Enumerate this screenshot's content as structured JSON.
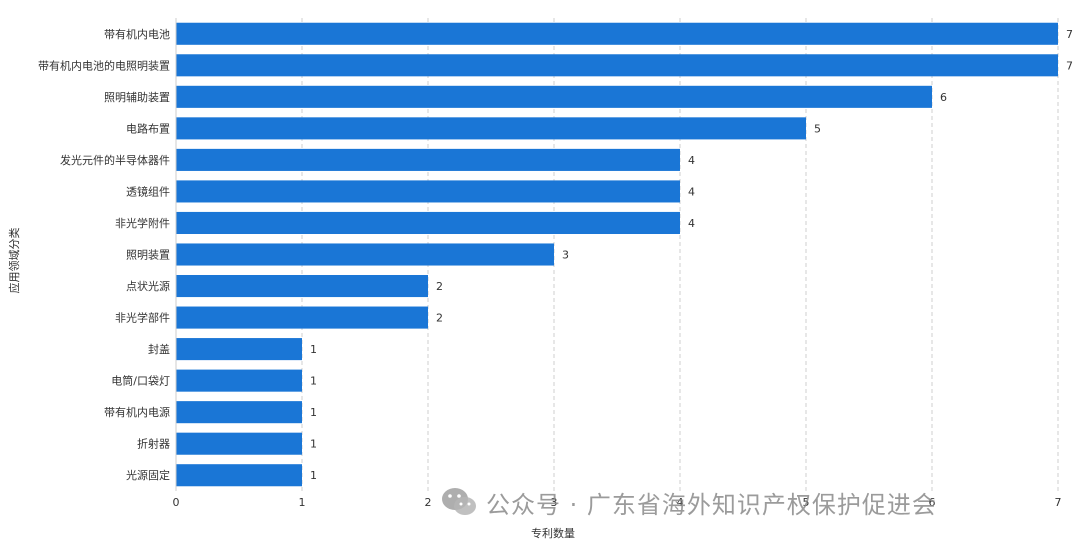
{
  "chart_data": {
    "type": "bar",
    "orientation": "horizontal",
    "categories": [
      "带有机内电池",
      "带有机内电池的电照明装置",
      "照明辅助装置",
      "电路布置",
      "发光元件的半导体器件",
      "透镜组件",
      "非光学附件",
      "照明装置",
      "点状光源",
      "非光学部件",
      "封盖",
      "电筒/口袋灯",
      "带有机内电源",
      "折射器",
      "光源固定"
    ],
    "values": [
      7,
      7,
      6,
      5,
      4,
      4,
      4,
      3,
      2,
      2,
      1,
      1,
      1,
      1,
      1
    ],
    "xlabel": "专利数量",
    "ylabel": "应用领域分类",
    "xlim": [
      0,
      7
    ],
    "xticks": [
      "0",
      "1",
      "2",
      "3",
      "4",
      "5",
      "6",
      "7"
    ],
    "grid": "vertical-dashed",
    "bar_color": "#1a76d6"
  },
  "watermark": {
    "text": "公众号 · 广东省海外知识产权保护促进会",
    "icon": "wechat-icon"
  }
}
